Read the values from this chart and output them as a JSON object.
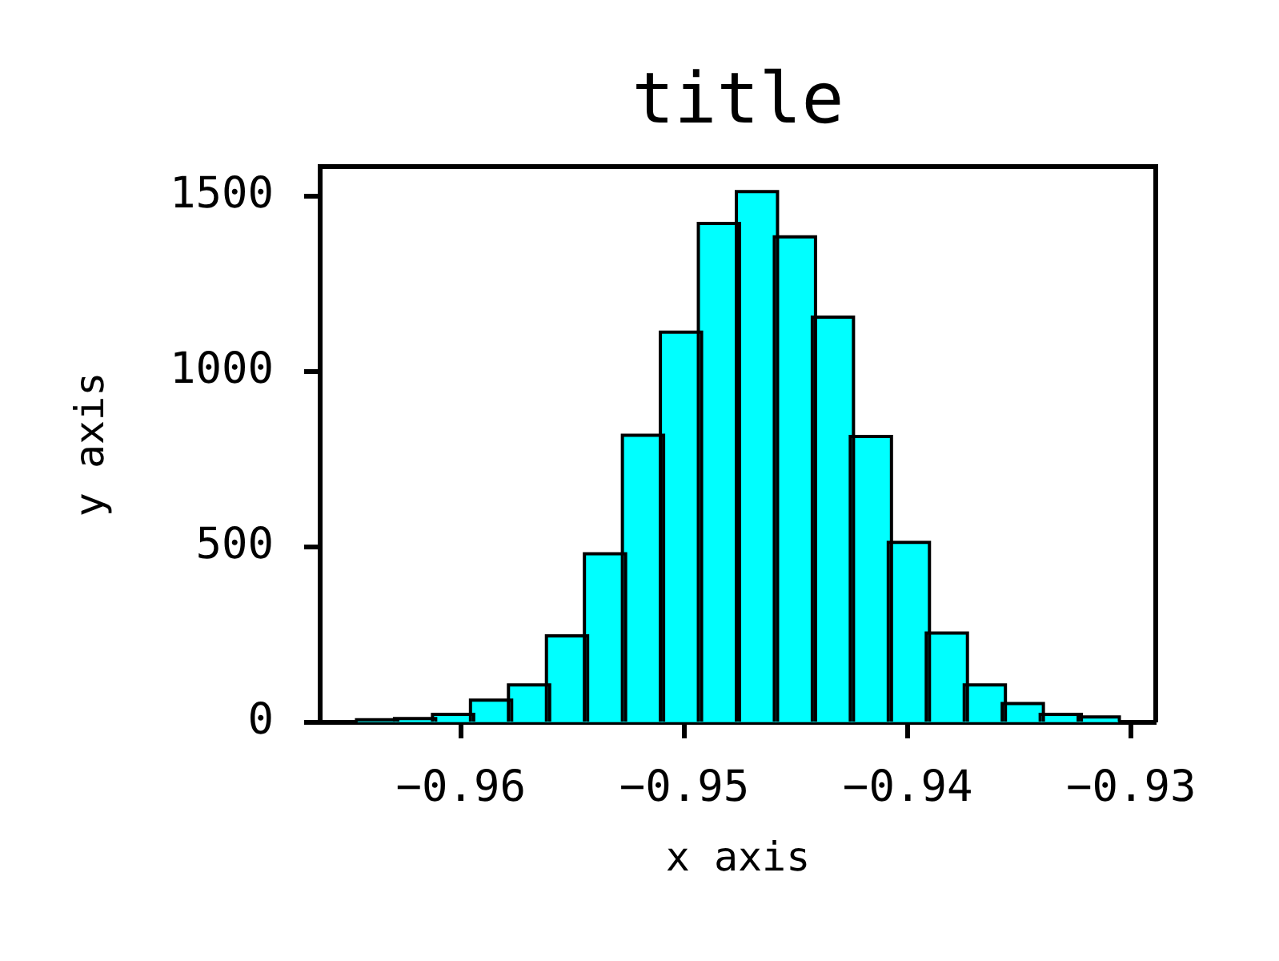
{
  "chart_data": {
    "type": "histogram",
    "title": "title",
    "xlabel": "x axis",
    "ylabel": "y axis",
    "bins": [
      -0.9646,
      -0.9629,
      -0.9612,
      -0.9595,
      -0.9578,
      -0.9561,
      -0.9544,
      -0.9527,
      -0.951,
      -0.9493,
      -0.9476,
      -0.9459,
      -0.9442,
      -0.9425,
      -0.9408,
      -0.9391,
      -0.9374,
      -0.9357,
      -0.934,
      -0.9323,
      -0.9306
    ],
    "values": [
      3,
      6,
      18,
      59,
      102,
      242,
      476,
      814,
      1108,
      1418,
      1509,
      1380,
      1151,
      811,
      509,
      250,
      102,
      49,
      18,
      11
    ],
    "color": "#00ffff",
    "xlim": [
      -0.9663,
      -0.9289
    ],
    "ylim": [
      0,
      1585
    ],
    "xticks": [
      {
        "value": -0.96,
        "label": "−0.96"
      },
      {
        "value": -0.95,
        "label": "−0.95"
      },
      {
        "value": -0.94,
        "label": "−0.94"
      },
      {
        "value": -0.93,
        "label": "−0.93"
      }
    ],
    "yticks": [
      0,
      500,
      1000,
      1500
    ]
  }
}
